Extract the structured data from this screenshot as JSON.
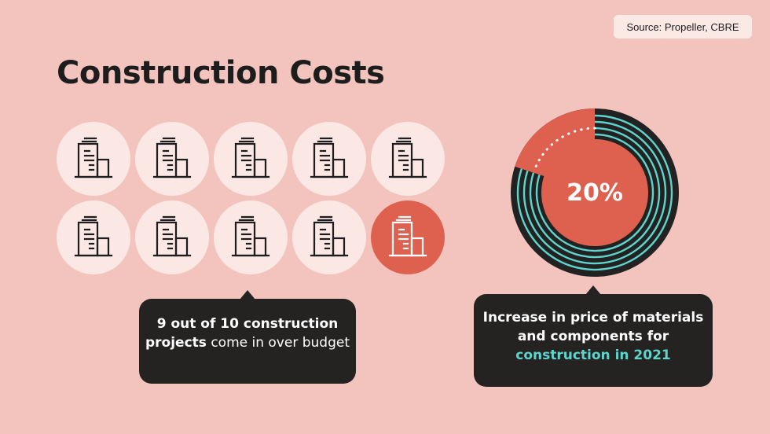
{
  "source_label": "Source: Propeller, CBRE",
  "title": "Construction Costs",
  "icons": {
    "total": 10,
    "highlighted": 1,
    "icon_name": "building-icon",
    "base_color": "#fbe8e4",
    "highlight_color": "#de614f"
  },
  "left_callout": {
    "bold_part": "9 out of 10 construction projects",
    "rest": " come in over budget"
  },
  "right_callout": {
    "text": "Increase in price of materials and components for ",
    "accent": "construction in 2021"
  },
  "chart_data": {
    "type": "pie",
    "values": [
      20,
      80
    ],
    "labels": [
      "20%",
      ""
    ],
    "colors": [
      "#de614f",
      "#222222"
    ],
    "ring_color": "#5fd4cc"
  },
  "colors": {
    "background": "#f2c4bd",
    "dark": "#242322",
    "accent": "#5fd4cc",
    "red": "#de614f"
  }
}
